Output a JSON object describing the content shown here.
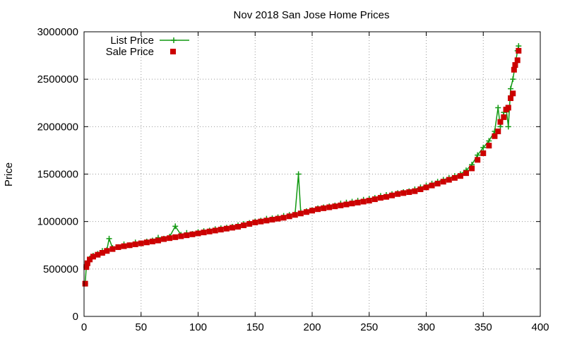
{
  "chart_data": {
    "type": "line",
    "title": "Nov 2018 San Jose Home Prices",
    "xlabel": "",
    "ylabel": "Price",
    "xlim": [
      0,
      400
    ],
    "ylim": [
      0,
      3000000
    ],
    "xticks": [
      "0",
      "50",
      "100",
      "150",
      "200",
      "250",
      "300",
      "350",
      "400"
    ],
    "yticks": [
      "0",
      "500000",
      "1000000",
      "1500000",
      "2000000",
      "2500000",
      "3000000"
    ],
    "grid": true,
    "legend_position": "top-left",
    "series": [
      {
        "name": "List Price",
        "style": "line+cross",
        "color": "#119911",
        "points": [
          [
            1,
            345000
          ],
          [
            2,
            520000
          ],
          [
            3,
            560000
          ],
          [
            5,
            610000
          ],
          [
            8,
            640000
          ],
          [
            12,
            660000
          ],
          [
            16,
            690000
          ],
          [
            20,
            700000
          ],
          [
            22,
            820000
          ],
          [
            25,
            720000
          ],
          [
            30,
            730000
          ],
          [
            35,
            760000
          ],
          [
            40,
            750000
          ],
          [
            45,
            780000
          ],
          [
            50,
            770000
          ],
          [
            55,
            790000
          ],
          [
            60,
            800000
          ],
          [
            65,
            830000
          ],
          [
            70,
            820000
          ],
          [
            75,
            840000
          ],
          [
            80,
            950000
          ],
          [
            85,
            860000
          ],
          [
            90,
            880000
          ],
          [
            95,
            870000
          ],
          [
            100,
            890000
          ],
          [
            105,
            900000
          ],
          [
            110,
            905000
          ],
          [
            115,
            920000
          ],
          [
            120,
            930000
          ],
          [
            125,
            935000
          ],
          [
            130,
            945000
          ],
          [
            135,
            960000
          ],
          [
            140,
            975000
          ],
          [
            145,
            985000
          ],
          [
            150,
            1000000
          ],
          [
            155,
            1010000
          ],
          [
            160,
            1030000
          ],
          [
            165,
            1035000
          ],
          [
            170,
            1045000
          ],
          [
            175,
            1060000
          ],
          [
            180,
            1070000
          ],
          [
            185,
            1080000
          ],
          [
            188,
            1500000
          ],
          [
            190,
            1100000
          ],
          [
            195,
            1110000
          ],
          [
            200,
            1120000
          ],
          [
            205,
            1140000
          ],
          [
            210,
            1150000
          ],
          [
            215,
            1160000
          ],
          [
            220,
            1170000
          ],
          [
            225,
            1190000
          ],
          [
            230,
            1200000
          ],
          [
            235,
            1210000
          ],
          [
            240,
            1220000
          ],
          [
            245,
            1230000
          ],
          [
            250,
            1240000
          ],
          [
            255,
            1250000
          ],
          [
            260,
            1270000
          ],
          [
            265,
            1280000
          ],
          [
            270,
            1290000
          ],
          [
            275,
            1300000
          ],
          [
            280,
            1310000
          ],
          [
            285,
            1320000
          ],
          [
            290,
            1340000
          ],
          [
            295,
            1360000
          ],
          [
            300,
            1380000
          ],
          [
            305,
            1400000
          ],
          [
            310,
            1420000
          ],
          [
            315,
            1440000
          ],
          [
            320,
            1460000
          ],
          [
            325,
            1480000
          ],
          [
            330,
            1500000
          ],
          [
            335,
            1540000
          ],
          [
            340,
            1600000
          ],
          [
            345,
            1700000
          ],
          [
            350,
            1780000
          ],
          [
            355,
            1850000
          ],
          [
            360,
            1950000
          ],
          [
            363,
            2200000
          ],
          [
            365,
            2000000
          ],
          [
            368,
            2150000
          ],
          [
            370,
            2200000
          ],
          [
            372,
            2000000
          ],
          [
            374,
            2400000
          ],
          [
            376,
            2500000
          ],
          [
            378,
            2650000
          ],
          [
            380,
            2800000
          ],
          [
            381,
            2850000
          ]
        ]
      },
      {
        "name": "Sale Price",
        "style": "square-points",
        "color": "#cc0000",
        "points": [
          [
            1,
            345000
          ],
          [
            2,
            520000
          ],
          [
            3,
            560000
          ],
          [
            5,
            600000
          ],
          [
            8,
            630000
          ],
          [
            12,
            650000
          ],
          [
            16,
            670000
          ],
          [
            20,
            690000
          ],
          [
            25,
            710000
          ],
          [
            30,
            730000
          ],
          [
            35,
            740000
          ],
          [
            40,
            750000
          ],
          [
            45,
            760000
          ],
          [
            50,
            770000
          ],
          [
            55,
            780000
          ],
          [
            60,
            790000
          ],
          [
            65,
            800000
          ],
          [
            70,
            815000
          ],
          [
            75,
            825000
          ],
          [
            80,
            835000
          ],
          [
            85,
            845000
          ],
          [
            90,
            855000
          ],
          [
            95,
            865000
          ],
          [
            100,
            875000
          ],
          [
            105,
            885000
          ],
          [
            110,
            895000
          ],
          [
            115,
            905000
          ],
          [
            120,
            915000
          ],
          [
            125,
            925000
          ],
          [
            130,
            935000
          ],
          [
            135,
            945000
          ],
          [
            140,
            960000
          ],
          [
            145,
            975000
          ],
          [
            150,
            990000
          ],
          [
            155,
            1000000
          ],
          [
            160,
            1010000
          ],
          [
            165,
            1020000
          ],
          [
            170,
            1030000
          ],
          [
            175,
            1040000
          ],
          [
            180,
            1055000
          ],
          [
            185,
            1070000
          ],
          [
            190,
            1085000
          ],
          [
            195,
            1100000
          ],
          [
            200,
            1115000
          ],
          [
            205,
            1130000
          ],
          [
            210,
            1140000
          ],
          [
            215,
            1150000
          ],
          [
            220,
            1160000
          ],
          [
            225,
            1170000
          ],
          [
            230,
            1180000
          ],
          [
            235,
            1190000
          ],
          [
            240,
            1200000
          ],
          [
            245,
            1210000
          ],
          [
            250,
            1220000
          ],
          [
            255,
            1235000
          ],
          [
            260,
            1250000
          ],
          [
            265,
            1260000
          ],
          [
            270,
            1275000
          ],
          [
            275,
            1290000
          ],
          [
            280,
            1300000
          ],
          [
            285,
            1310000
          ],
          [
            290,
            1320000
          ],
          [
            295,
            1340000
          ],
          [
            300,
            1360000
          ],
          [
            305,
            1380000
          ],
          [
            310,
            1400000
          ],
          [
            315,
            1420000
          ],
          [
            320,
            1440000
          ],
          [
            325,
            1460000
          ],
          [
            330,
            1480000
          ],
          [
            335,
            1510000
          ],
          [
            340,
            1560000
          ],
          [
            345,
            1650000
          ],
          [
            350,
            1720000
          ],
          [
            355,
            1800000
          ],
          [
            360,
            1900000
          ],
          [
            363,
            1950000
          ],
          [
            365,
            2050000
          ],
          [
            368,
            2100000
          ],
          [
            370,
            2180000
          ],
          [
            372,
            2200000
          ],
          [
            374,
            2300000
          ],
          [
            376,
            2350000
          ],
          [
            377,
            2600000
          ],
          [
            378,
            2650000
          ],
          [
            380,
            2700000
          ],
          [
            381,
            2800000
          ]
        ]
      }
    ]
  }
}
